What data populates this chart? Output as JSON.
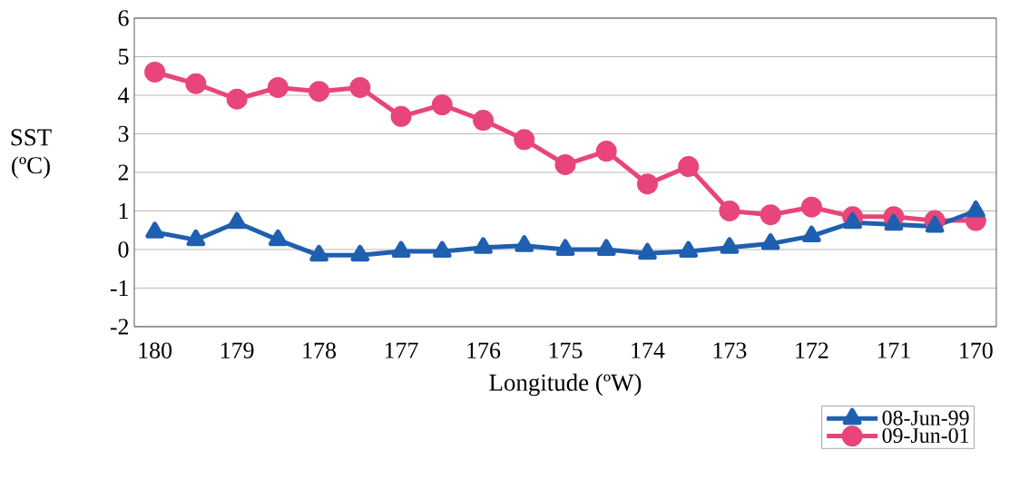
{
  "chart_data": {
    "type": "line",
    "xlabel": "Longitude (ºW)",
    "ylabel": "SST (ºC)",
    "x": [
      180,
      179.5,
      179,
      178.5,
      178,
      177.5,
      177,
      176.5,
      176,
      175.5,
      175,
      174.5,
      174,
      173.5,
      173,
      172.5,
      172,
      171.5,
      171,
      170.5,
      170
    ],
    "series": [
      {
        "name": "08-Jun-99",
        "color": "#1f5fb0",
        "marker": "triangle",
        "values": [
          0.45,
          0.25,
          0.7,
          0.25,
          -0.15,
          -0.15,
          -0.05,
          -0.05,
          0.05,
          0.1,
          0,
          0,
          -0.1,
          -0.05,
          0.05,
          0.15,
          0.35,
          0.7,
          0.65,
          0.6,
          1.0
        ]
      },
      {
        "name": "09-Jun-01",
        "color": "#e8457a",
        "marker": "circle",
        "values": [
          4.6,
          4.3,
          3.9,
          4.2,
          4.1,
          4.2,
          3.45,
          3.75,
          3.35,
          2.85,
          2.2,
          2.55,
          1.7,
          2.15,
          1.0,
          0.9,
          1.1,
          0.85,
          0.85,
          0.75,
          0.75
        ]
      }
    ],
    "xlim": [
      180.25,
      169.75
    ],
    "xticks": [
      180,
      179,
      178,
      177,
      176,
      175,
      174,
      173,
      172,
      171,
      170
    ],
    "ylim": [
      -2,
      6
    ],
    "yticks": [
      -2,
      -1,
      0,
      1,
      2,
      3,
      4,
      5,
      6
    ],
    "grid": "y",
    "legend": "bottom right",
    "line_style": "solid"
  }
}
